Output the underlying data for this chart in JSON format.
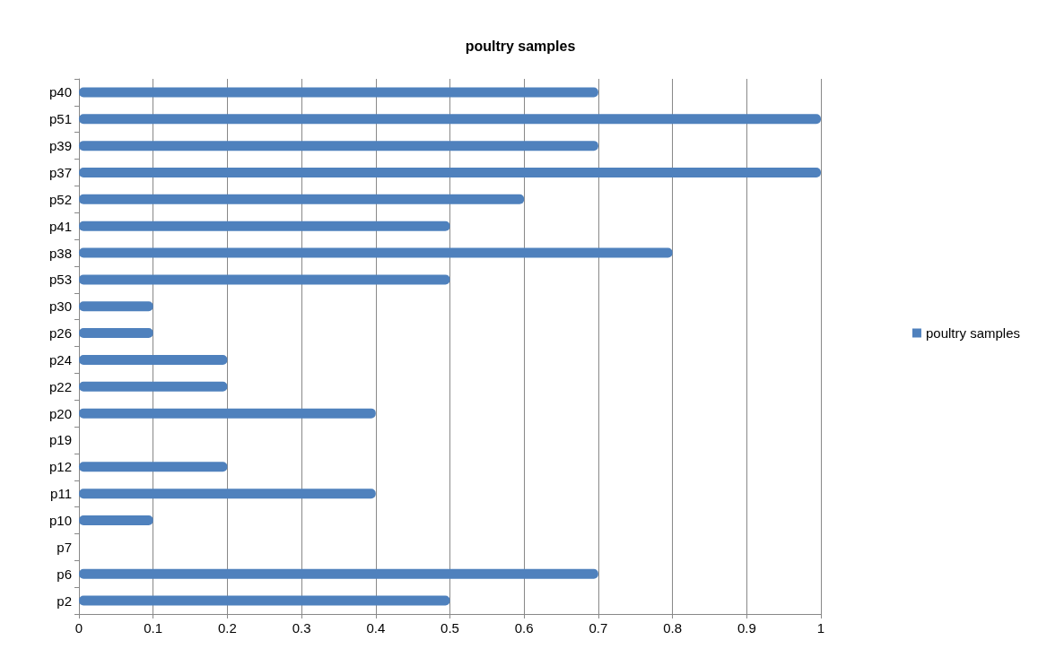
{
  "chart_data": {
    "type": "bar",
    "orientation": "horizontal",
    "title": "poultry samples",
    "categories": [
      "p40",
      "p51",
      "p39",
      "p37",
      "p52",
      "p41",
      "p38",
      "p53",
      "p30",
      "p26",
      "p24",
      "p22",
      "p20",
      "p19",
      "p12",
      "p11",
      "p10",
      "p7",
      "p6",
      "p2"
    ],
    "series": [
      {
        "name": "poultry samples",
        "color": "#4f81bd",
        "values": [
          0.7,
          1,
          0.7,
          1,
          0.6,
          0.5,
          0.8,
          0.5,
          0.1,
          0.1,
          0.2,
          0.2,
          0.4,
          0,
          0.2,
          0.4,
          0.1,
          0,
          0.7,
          0.5
        ]
      }
    ],
    "xlim": [
      0,
      1
    ],
    "xticks": [
      0,
      0.1,
      0.2,
      0.3,
      0.4,
      0.5,
      0.6,
      0.7,
      0.8,
      0.9,
      1
    ],
    "grid": "x",
    "legend": "right"
  }
}
